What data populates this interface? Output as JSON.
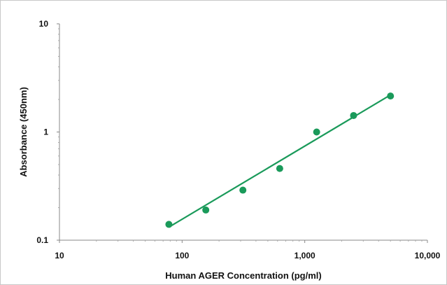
{
  "chart_data": {
    "type": "scatter",
    "title": "",
    "xlabel": "Human AGER Concentration (pg/ml)",
    "ylabel": "Absorbance (450nm)",
    "x_scale": "log",
    "y_scale": "log",
    "xlim": [
      10,
      10000
    ],
    "ylim": [
      0.1,
      10
    ],
    "x_ticks": [
      "10",
      "100",
      "1,000",
      "10,000"
    ],
    "y_ticks": [
      "0.1",
      "1",
      "10"
    ],
    "x_tick_values": [
      10,
      100,
      1000,
      10000
    ],
    "y_tick_values": [
      0.1,
      1,
      10
    ],
    "grid": false,
    "legend": "none",
    "series": [
      {
        "color": "#1a9a5a",
        "points": [
          {
            "x": 78,
            "y": 0.14
          },
          {
            "x": 156,
            "y": 0.19
          },
          {
            "x": 313,
            "y": 0.29
          },
          {
            "x": 625,
            "y": 0.46
          },
          {
            "x": 1250,
            "y": 1.0
          },
          {
            "x": 2500,
            "y": 1.42
          },
          {
            "x": 5000,
            "y": 2.15
          }
        ]
      }
    ],
    "trendline": {
      "color": "#1a9a5a",
      "from": {
        "x": 78,
        "y": 0.132
      },
      "to": {
        "x": 5000,
        "y": 2.2
      }
    }
  }
}
